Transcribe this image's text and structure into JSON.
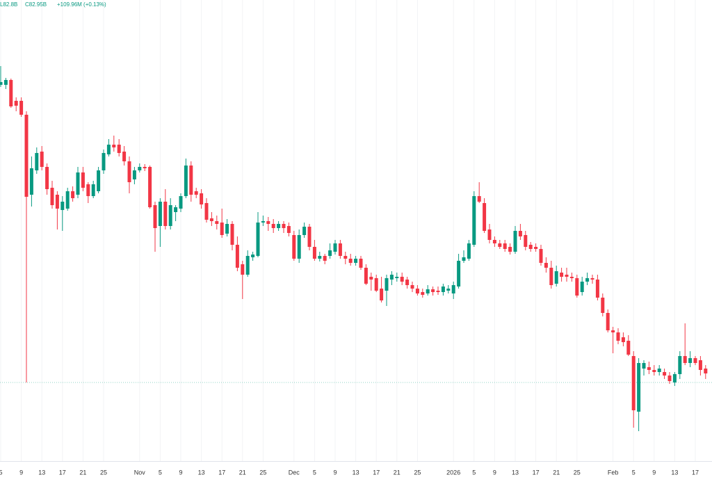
{
  "chart_data": {
    "type": "candlestick",
    "header": [
      "L82.8B",
      "C82.95B",
      "+109.96M (+0.13%)"
    ],
    "up_color": "#089981",
    "down_color": "#f23645",
    "ylim": [
      77.5,
      110.5
    ],
    "price_line": 83,
    "categories": [
      "5",
      null,
      null,
      null,
      "9",
      null,
      null,
      null,
      "13",
      null,
      null,
      null,
      "17",
      null,
      null,
      null,
      "21",
      null,
      null,
      null,
      "25",
      null,
      null,
      null,
      null,
      null,
      null,
      "Nov",
      null,
      null,
      null,
      "5",
      null,
      null,
      null,
      "9",
      null,
      null,
      null,
      "13",
      null,
      null,
      null,
      "17",
      null,
      null,
      null,
      "21",
      null,
      null,
      null,
      "25",
      null,
      null,
      null,
      null,
      null,
      "Dec",
      null,
      null,
      null,
      "5",
      null,
      null,
      null,
      "9",
      null,
      null,
      null,
      "13",
      null,
      null,
      null,
      "17",
      null,
      null,
      null,
      "21",
      null,
      null,
      null,
      "25",
      null,
      null,
      null,
      null,
      null,
      null,
      "2026",
      null,
      null,
      null,
      "5",
      null,
      null,
      null,
      "9",
      null,
      null,
      null,
      "13",
      null,
      null,
      null,
      "17",
      null,
      null,
      null,
      "21",
      null,
      null,
      null,
      "25",
      null,
      null,
      null,
      null,
      null,
      null,
      "Feb",
      null,
      null,
      null,
      "5",
      null,
      null,
      null,
      "9",
      null,
      null,
      null,
      "13",
      null,
      null,
      null,
      "17",
      null,
      null
    ],
    "open": [
      104.4,
      104.4,
      104.75,
      103.25,
      103.25,
      102.25,
      96.5,
      98.25,
      99.6,
      98.5,
      97,
      96.5,
      95.4,
      95.5,
      96.75,
      96.5,
      98.1,
      97.25,
      96.4,
      96.75,
      98.25,
      99.4,
      100.1,
      100.1,
      99.6,
      98.9,
      97.6,
      98.25,
      98.5,
      98.5,
      95.75,
      94.25,
      96,
      94.25,
      95.25,
      95.5,
      96.4,
      98.6,
      96.75,
      96.6,
      95.9,
      94.8,
      94.6,
      94.5,
      93.7,
      94.4,
      92.9,
      91.5,
      90.75,
      92,
      92.1,
      94.5,
      94.6,
      94.4,
      94.1,
      94.4,
      94.25,
      93.6,
      91.9,
      93.6,
      94.2,
      92.75,
      91.9,
      92.1,
      92.1,
      92.4,
      93,
      92.1,
      91.9,
      91.6,
      91.9,
      91.25,
      90.6,
      90.5,
      89.75,
      89.6,
      90.4,
      90.5,
      90.6,
      90.4,
      90,
      89.75,
      89.5,
      89.4,
      89.7,
      89.6,
      89.5,
      89.6,
      89.4,
      89.9,
      91.75,
      91.9,
      92.9,
      96.4,
      95.9,
      94,
      93.25,
      93,
      93,
      92.75,
      92.4,
      93.9,
      93.6,
      92.9,
      92.75,
      92.6,
      91.6,
      91.25,
      90.1,
      90.9,
      90.75,
      90.6,
      90.5,
      89.5,
      90.25,
      90.5,
      90.4,
      89.1,
      88,
      86.75,
      86.6,
      86.25,
      86,
      84.9,
      80.9,
      84,
      84.1,
      83.9,
      83.75,
      83.75,
      83.5,
      83,
      83.6,
      84.9,
      84.4,
      84.75,
      84.6,
      84
    ],
    "high": [
      105.75,
      104.9,
      104.85,
      103.5,
      103.5,
      102.5,
      99.25,
      99.9,
      100,
      98.75,
      97.5,
      96.75,
      96.4,
      97,
      97.1,
      98.5,
      98.5,
      97.4,
      97.5,
      98.5,
      99.75,
      100.5,
      100.75,
      100.5,
      100,
      99.25,
      98.5,
      98.75,
      98.7,
      98.6,
      96,
      96.25,
      96.9,
      96.25,
      95.75,
      96.6,
      99.1,
      98.9,
      97,
      96.9,
      96.25,
      95.25,
      95,
      95.5,
      94.75,
      94.6,
      93.5,
      91.75,
      92.5,
      92.4,
      95.25,
      95,
      94.9,
      94.75,
      94.6,
      94.6,
      94.5,
      93.9,
      94,
      94.5,
      94.4,
      93.25,
      92.4,
      92.25,
      93,
      93.25,
      93.25,
      92.4,
      92.25,
      92.1,
      92.1,
      91.5,
      90.9,
      90.75,
      90.6,
      90.75,
      91,
      90.9,
      90.9,
      90.6,
      90.25,
      90,
      89.75,
      90,
      89.9,
      89.9,
      90.1,
      90,
      90.25,
      92.25,
      92.5,
      93.25,
      96.75,
      97.4,
      96.25,
      94.4,
      93.5,
      93.25,
      93.25,
      93,
      94.25,
      94.4,
      93.9,
      93.1,
      93,
      92.9,
      92,
      91.75,
      91.4,
      91.25,
      91.25,
      90.9,
      90.75,
      90.6,
      90.9,
      90.75,
      90.75,
      89.4,
      88.25,
      87,
      86.9,
      86.6,
      86.4,
      85.25,
      84.75,
      84.6,
      84.5,
      84.25,
      84.25,
      84,
      83.75,
      83.75,
      85.25,
      87.25,
      85.25,
      84.9,
      84.9,
      84.25
    ],
    "low": [
      104.25,
      104.1,
      102.75,
      102.5,
      102.1,
      83,
      95.65,
      98,
      98.25,
      96.5,
      95.5,
      94,
      93.9,
      95.35,
      96,
      96.25,
      96.75,
      95.9,
      96.25,
      96.6,
      98,
      99.25,
      99.6,
      99.25,
      98.6,
      96.6,
      97.25,
      98.1,
      98.2,
      95.5,
      92.4,
      92.75,
      94,
      94,
      94.6,
      95.25,
      96.25,
      96,
      96.25,
      95.5,
      94.5,
      94.25,
      94,
      93.4,
      93.5,
      92.5,
      91,
      89,
      90.6,
      91.75,
      92,
      94.25,
      93.9,
      93.75,
      93.9,
      93.75,
      93.5,
      91.75,
      91.6,
      93.4,
      92.5,
      91.75,
      91.7,
      91.5,
      91.9,
      92.2,
      91.9,
      91.5,
      91.4,
      91.4,
      91.1,
      90,
      89.6,
      89.5,
      88.75,
      88.5,
      90,
      90.25,
      90,
      89.75,
      89.5,
      89.25,
      89.1,
      89.25,
      89.25,
      89.3,
      89.25,
      89.4,
      89,
      89.75,
      91.6,
      91.75,
      92.75,
      95.9,
      93.75,
      93,
      92.75,
      92.6,
      92.4,
      92.2,
      92.25,
      93.25,
      92.5,
      92.4,
      92.4,
      91.4,
      90.9,
      89.75,
      89.9,
      90.25,
      90.25,
      90.25,
      89.1,
      89.25,
      90,
      90.1,
      88.9,
      87.75,
      86.6,
      85.1,
      85.75,
      85.6,
      84.9,
      79.75,
      79.5,
      83.5,
      83.6,
      83.5,
      83.5,
      83.25,
      82.9,
      82.75,
      83.25,
      84.25,
      84.1,
      84.25,
      83.5,
      83.25
    ],
    "close": [
      104.6,
      104.75,
      102.85,
      102.9,
      102.25,
      96.35,
      98.4,
      99.5,
      98.5,
      96.9,
      95.75,
      95.5,
      96,
      96.75,
      96.25,
      98.1,
      97,
      96.4,
      97.25,
      98.25,
      99.5,
      100.1,
      99.9,
      99.5,
      98.9,
      97.4,
      98.25,
      98.5,
      98.4,
      95.6,
      94.1,
      96,
      94.25,
      95.75,
      95.6,
      96.4,
      98.6,
      96.5,
      96.5,
      95.8,
      94.7,
      94.6,
      94.4,
      93.6,
      94.4,
      92.9,
      91.25,
      90.75,
      92.1,
      92.2,
      94.5,
      94.6,
      94.4,
      94.1,
      94.4,
      94.1,
      93.75,
      91.9,
      93.6,
      94.2,
      92.75,
      91.9,
      92.1,
      91.75,
      92.5,
      93,
      92.1,
      91.9,
      91.6,
      91.9,
      91.25,
      90.1,
      90.4,
      89.6,
      88.9,
      90.5,
      90.75,
      90.6,
      90.25,
      90,
      89.75,
      89.4,
      89.3,
      89.7,
      89.5,
      89.5,
      89.9,
      89.75,
      90,
      91.75,
      92,
      93,
      96.4,
      96,
      93.9,
      93.25,
      93,
      92.75,
      92.6,
      92.4,
      93.9,
      93.5,
      92.75,
      92.6,
      92.6,
      91.6,
      91.25,
      90,
      91,
      90.6,
      90.6,
      90.5,
      89.25,
      90.25,
      90.5,
      90.4,
      89.1,
      88,
      86.75,
      86.6,
      86,
      85.9,
      85,
      81,
      84.4,
      84.4,
      83.9,
      83.75,
      84,
      83.5,
      83.1,
      83.6,
      84.9,
      84.4,
      84.75,
      84.4,
      83.9,
      83.65
    ]
  }
}
